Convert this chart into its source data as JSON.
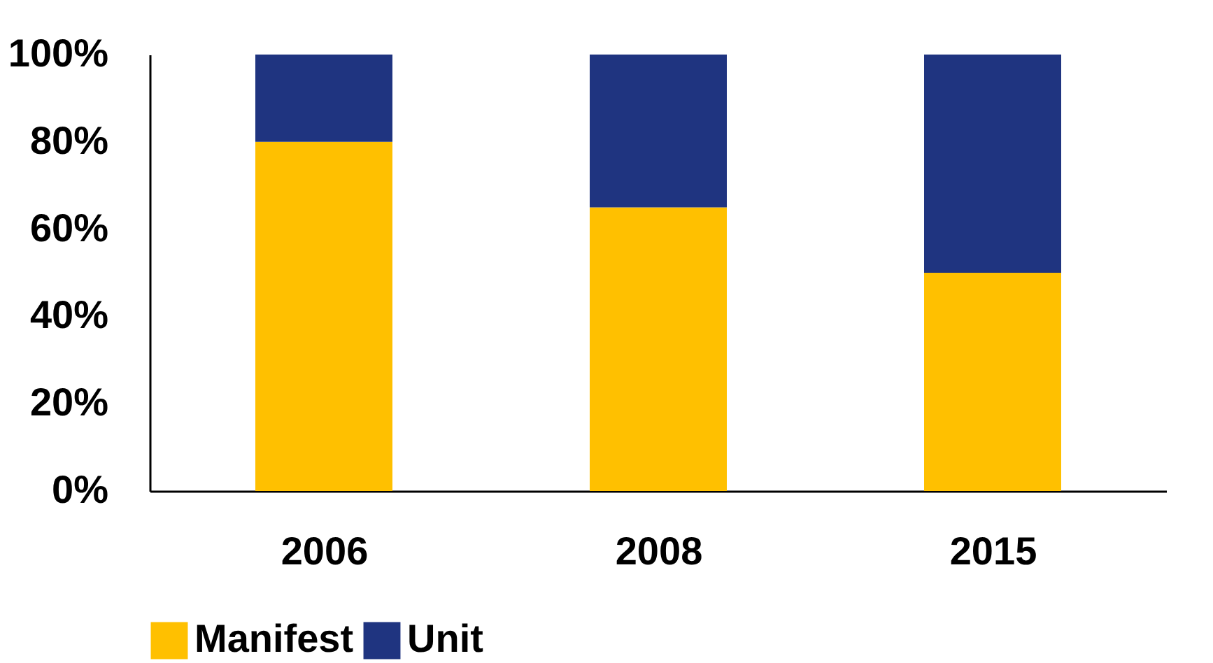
{
  "chart_data": {
    "type": "bar",
    "stacked": true,
    "categories": [
      "2006",
      "2008",
      "2015"
    ],
    "series": [
      {
        "name": "Manifest",
        "color": "#ffc000",
        "values": [
          80,
          65,
          50
        ]
      },
      {
        "name": "Unit",
        "color": "#1f3480",
        "values": [
          20,
          35,
          50
        ]
      }
    ],
    "ylim": [
      0,
      100
    ],
    "yticks": [
      {
        "value": 0,
        "label": "0%"
      },
      {
        "value": 20,
        "label": "20%"
      },
      {
        "value": 40,
        "label": "40%"
      },
      {
        "value": 60,
        "label": "60%"
      },
      {
        "value": 80,
        "label": "80%"
      },
      {
        "value": 100,
        "label": "100%"
      }
    ],
    "grid": false,
    "legend": "bottom"
  }
}
